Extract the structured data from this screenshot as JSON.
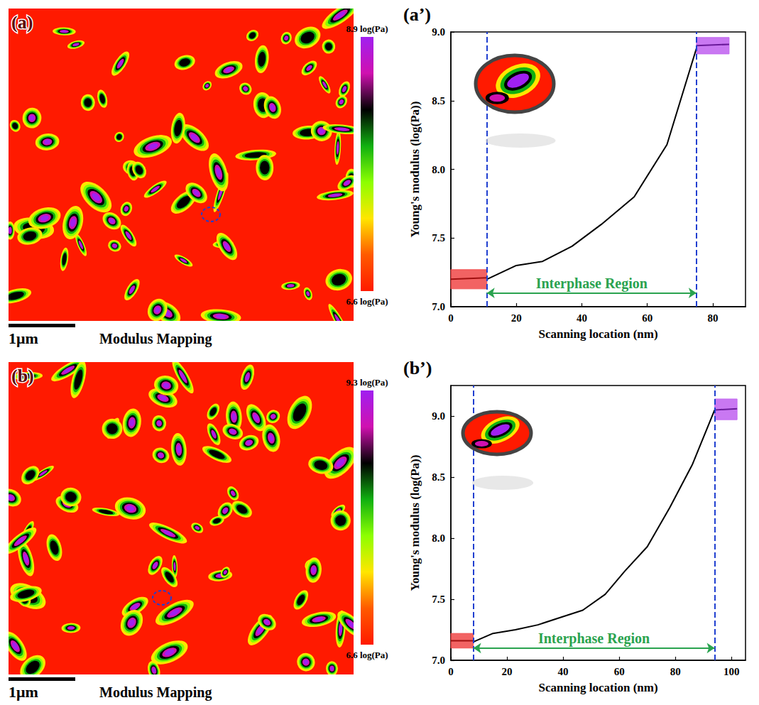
{
  "maps": [
    {
      "panel_label": "(a)",
      "caption": "Modulus Mapping",
      "scale_bar": "1μm",
      "colorbar": {
        "range": [
          6.6,
          8.9
        ],
        "ticks": [
          {
            "value": 8.9,
            "label": "8.9 log(Pa)"
          },
          {
            "value": 6.6,
            "label": "6.6 log(Pa)"
          }
        ],
        "colors": [
          "#ff1a00",
          "#ff5a00",
          "#ffe600",
          "#8cff00",
          "#10b010",
          "#000000",
          "#d010b0",
          "#a020f0"
        ]
      }
    },
    {
      "panel_label": "(b)",
      "caption": "Modulus Mapping",
      "scale_bar": "1μm",
      "colorbar": {
        "range": [
          6.6,
          9.3
        ],
        "ticks": [
          {
            "value": 9.3,
            "label": "9.3 log(Pa)"
          },
          {
            "value": 6.6,
            "label": "6.6 log(Pa)"
          }
        ],
        "colors": [
          "#ff1a00",
          "#ff5a00",
          "#ffe600",
          "#8cff00",
          "#10b010",
          "#000000",
          "#d010b0",
          "#a020f0"
        ]
      }
    }
  ],
  "chart_data": [
    {
      "panel_label": "(a’)",
      "type": "line",
      "x_label": "Scanning location (nm)",
      "y_label": "Young's modulus (log(Pa))",
      "xlim": [
        0,
        90
      ],
      "xticks": [
        0,
        20,
        40,
        60,
        80
      ],
      "ylim": [
        7,
        9
      ],
      "yticks": [
        {
          "value": 7,
          "label": "7.0"
        },
        {
          "value": 7.5,
          "label": "7.5"
        },
        {
          "value": 8,
          "label": "8.0"
        },
        {
          "value": 8.5,
          "label": "8.5"
        },
        {
          "value": 9,
          "label": "9.0"
        }
      ],
      "grid": false,
      "series": [
        {
          "color": "#000000",
          "x": [
            11,
            20,
            28,
            37,
            46,
            56,
            66,
            75
          ],
          "values": [
            7.2,
            7.3,
            7.33,
            7.44,
            7.6,
            7.8,
            8.18,
            8.88
          ]
        },
        {
          "color": "#a01010",
          "x": [
            0,
            11
          ],
          "values": [
            7.2,
            7.21
          ]
        },
        {
          "color": "#6a1a9a",
          "x": [
            75,
            85
          ],
          "values": [
            8.9,
            8.91
          ]
        }
      ],
      "regions": [
        {
          "x": [
            0,
            11
          ],
          "y": [
            7.13,
            7.27
          ],
          "color": "#f04848"
        },
        {
          "x": [
            75,
            85
          ],
          "y": [
            8.84,
            8.96
          ],
          "color": "#c060f0"
        }
      ],
      "markers_x": [
        11,
        75
      ],
      "annotation": {
        "text": "Interphase Region",
        "x": [
          11,
          75
        ],
        "y": 7.1
      }
    },
    {
      "panel_label": "(b’)",
      "type": "line",
      "x_label": "Scanning location (nm)",
      "y_label": "Young's modulus (log(Pa))",
      "xlim": [
        0,
        105
      ],
      "xticks": [
        0,
        20,
        40,
        60,
        80,
        100
      ],
      "ylim": [
        7,
        9.25
      ],
      "yticks": [
        {
          "value": 7,
          "label": "7.0"
        },
        {
          "value": 7.5,
          "label": "7.5"
        },
        {
          "value": 8,
          "label": "8.0"
        },
        {
          "value": 8.5,
          "label": "8.5"
        },
        {
          "value": 9,
          "label": "9.0"
        }
      ],
      "grid": false,
      "series": [
        {
          "color": "#000000",
          "x": [
            8,
            15,
            23,
            31,
            39,
            47,
            55,
            62,
            70,
            78,
            86,
            94
          ],
          "values": [
            7.15,
            7.22,
            7.25,
            7.29,
            7.35,
            7.41,
            7.54,
            7.73,
            7.93,
            8.25,
            8.6,
            9.05
          ]
        },
        {
          "color": "#a01010",
          "x": [
            0,
            8
          ],
          "values": [
            7.16,
            7.16
          ]
        },
        {
          "color": "#6a1a9a",
          "x": [
            94,
            102
          ],
          "values": [
            9.05,
            9.06
          ]
        }
      ],
      "regions": [
        {
          "x": [
            0,
            8
          ],
          "y": [
            7.1,
            7.22
          ],
          "color": "#f04848"
        },
        {
          "x": [
            94,
            102
          ],
          "y": [
            8.97,
            9.14
          ],
          "color": "#c060f0"
        }
      ],
      "markers_x": [
        8,
        94
      ],
      "annotation": {
        "text": "Interphase Region",
        "x": [
          8,
          94
        ],
        "y": 7.1
      }
    }
  ]
}
